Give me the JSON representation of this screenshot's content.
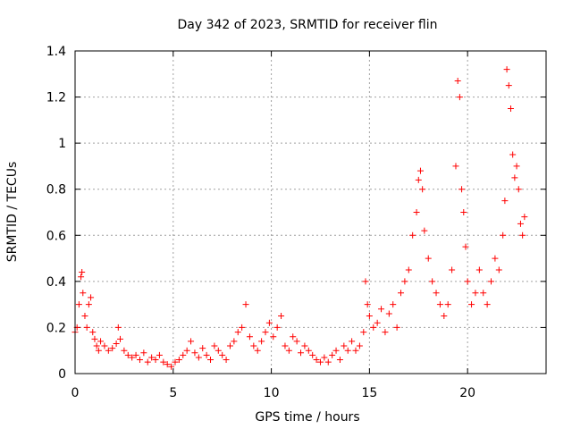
{
  "chart_data": {
    "type": "scatter",
    "title": "Day 342 of 2023, SRMTID for receiver flin",
    "xlabel": "GPS time / hours",
    "ylabel": "SRMTID / TECUs",
    "xlim": [
      0,
      24
    ],
    "ylim": [
      0,
      1.4
    ],
    "xticks": [
      0,
      5,
      10,
      15,
      20
    ],
    "xtick_labels": [
      "0",
      "5",
      "10",
      "15",
      "20"
    ],
    "yticks": [
      0,
      0.2,
      0.4,
      0.6,
      0.8,
      1.0,
      1.2,
      1.4
    ],
    "ytick_labels": [
      "0",
      "0.2",
      "0.4",
      "0.6",
      "0.8",
      "1",
      "1.2",
      "1.4"
    ],
    "grid": true,
    "marker": "+",
    "color": "#ff0000",
    "series": [
      {
        "name": "SRMTID",
        "x": [
          0.0,
          0.1,
          0.2,
          0.3,
          0.35,
          0.4,
          0.5,
          0.6,
          0.7,
          0.8,
          0.9,
          1.0,
          1.1,
          1.2,
          1.3,
          1.5,
          1.7,
          1.9,
          2.1,
          2.2,
          2.3,
          2.5,
          2.7,
          2.9,
          3.1,
          3.3,
          3.5,
          3.7,
          3.9,
          4.1,
          4.3,
          4.5,
          4.7,
          4.9,
          5.1,
          5.3,
          5.5,
          5.7,
          5.9,
          6.1,
          6.3,
          6.5,
          6.7,
          6.9,
          7.1,
          7.3,
          7.5,
          7.7,
          7.9,
          8.1,
          8.3,
          8.5,
          8.7,
          8.9,
          9.1,
          9.3,
          9.5,
          9.7,
          9.9,
          10.1,
          10.3,
          10.5,
          10.7,
          10.9,
          11.1,
          11.3,
          11.5,
          11.7,
          11.9,
          12.1,
          12.3,
          12.5,
          12.7,
          12.9,
          13.1,
          13.3,
          13.5,
          13.7,
          13.9,
          14.1,
          14.3,
          14.5,
          14.7,
          14.8,
          14.9,
          15.0,
          15.2,
          15.4,
          15.6,
          15.8,
          16.0,
          16.2,
          16.4,
          16.6,
          16.8,
          17.0,
          17.2,
          17.4,
          17.5,
          17.6,
          17.7,
          17.8,
          18.0,
          18.2,
          18.4,
          18.6,
          18.8,
          19.0,
          19.2,
          19.4,
          19.5,
          19.6,
          19.7,
          19.8,
          19.9,
          20.0,
          20.2,
          20.4,
          20.6,
          20.8,
          21.0,
          21.2,
          21.4,
          21.6,
          21.8,
          21.9,
          22.0,
          22.1,
          22.2,
          22.3,
          22.4,
          22.5,
          22.6,
          22.7,
          22.8,
          22.9
        ],
        "y": [
          0.18,
          0.2,
          0.3,
          0.42,
          0.44,
          0.35,
          0.25,
          0.2,
          0.3,
          0.33,
          0.18,
          0.15,
          0.12,
          0.1,
          0.14,
          0.12,
          0.1,
          0.11,
          0.13,
          0.2,
          0.15,
          0.1,
          0.08,
          0.07,
          0.08,
          0.06,
          0.09,
          0.05,
          0.07,
          0.06,
          0.08,
          0.05,
          0.04,
          0.03,
          0.05,
          0.06,
          0.08,
          0.1,
          0.14,
          0.09,
          0.07,
          0.11,
          0.08,
          0.06,
          0.12,
          0.1,
          0.08,
          0.06,
          0.12,
          0.14,
          0.18,
          0.2,
          0.3,
          0.16,
          0.12,
          0.1,
          0.14,
          0.18,
          0.22,
          0.16,
          0.2,
          0.25,
          0.12,
          0.1,
          0.16,
          0.14,
          0.09,
          0.12,
          0.1,
          0.08,
          0.06,
          0.05,
          0.07,
          0.05,
          0.08,
          0.1,
          0.06,
          0.12,
          0.1,
          0.14,
          0.1,
          0.12,
          0.18,
          0.4,
          0.3,
          0.25,
          0.2,
          0.22,
          0.28,
          0.18,
          0.26,
          0.3,
          0.2,
          0.35,
          0.4,
          0.45,
          0.6,
          0.7,
          0.84,
          0.88,
          0.8,
          0.62,
          0.5,
          0.4,
          0.35,
          0.3,
          0.25,
          0.3,
          0.45,
          0.9,
          1.27,
          1.2,
          0.8,
          0.7,
          0.55,
          0.4,
          0.3,
          0.35,
          0.45,
          0.35,
          0.3,
          0.4,
          0.5,
          0.45,
          0.6,
          0.75,
          1.32,
          1.25,
          1.15,
          0.95,
          0.85,
          0.9,
          0.8,
          0.65,
          0.6,
          0.68
        ]
      }
    ]
  }
}
